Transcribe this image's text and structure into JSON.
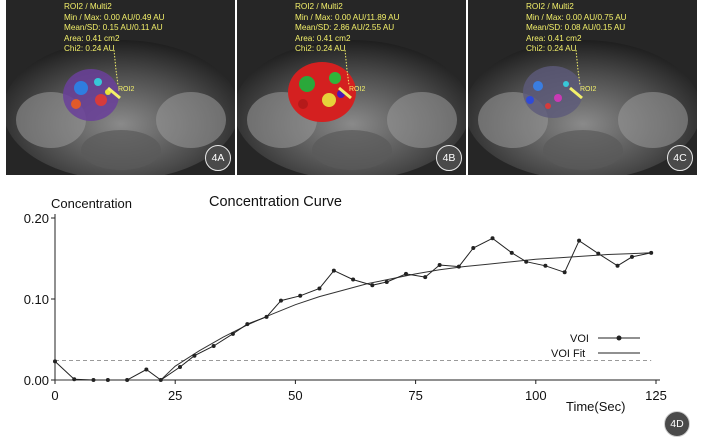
{
  "panels": [
    {
      "roi": "ROI2 / Multi2",
      "minmax": "Min / Max: 0.00 AU/0.49 AU",
      "meansd": "Mean/SD: 0.15 AU/0.11 AU",
      "area": "Area: 0.41 cm2",
      "chi2": "Chi2: 0.24 AU",
      "roi_tag": "ROI2",
      "label": "4A"
    },
    {
      "roi": "ROI2 / Multi2",
      "minmax": "Min / Max: 0.00 AU/11.89 AU",
      "meansd": "Mean/SD: 2.86 AU/2.55 AU",
      "area": "Area: 0.41 cm2",
      "chi2": "Chi2: 0.24 AU",
      "roi_tag": "ROI2",
      "label": "4B"
    },
    {
      "roi": "ROI2 / Multi2",
      "minmax": "Min / Max: 0.00 AU/0.75 AU",
      "meansd": "Mean/SD: 0.08 AU/0.15 AU",
      "area": "Area: 0.41 cm2",
      "chi2": "Chi2: 0.24 AU",
      "roi_tag": "ROI2",
      "label": "4C"
    }
  ],
  "chart_data": {
    "type": "line",
    "title": "Concentration Curve",
    "ylabel": "Concentration",
    "xlabel": "Time(Sec)",
    "label": "4D",
    "xlim": [
      0,
      125
    ],
    "ylim": [
      0,
      0.2
    ],
    "xticks": [
      0,
      25,
      50,
      75,
      100,
      125
    ],
    "yticks": [
      0,
      0.1,
      0.2
    ],
    "ytick_labels": [
      "0.00",
      "0.10",
      "0.20"
    ],
    "baseline": 0.024,
    "legend_position": "right",
    "series": [
      {
        "name": "VOI",
        "style": "line-with-markers",
        "x": [
          0,
          4,
          8,
          11,
          15,
          19,
          22,
          26,
          29,
          33,
          37,
          40,
          44,
          47,
          51,
          55,
          58,
          62,
          66,
          69,
          73,
          77,
          80,
          84,
          87,
          91,
          95,
          98,
          102,
          106,
          109,
          113,
          117,
          120,
          124
        ],
        "y": [
          0.023,
          0.001,
          0.0,
          0.0,
          0.0,
          0.013,
          0.0,
          0.016,
          0.03,
          0.042,
          0.057,
          0.069,
          0.078,
          0.098,
          0.104,
          0.113,
          0.135,
          0.124,
          0.117,
          0.121,
          0.131,
          0.127,
          0.142,
          0.14,
          0.163,
          0.175,
          0.157,
          0.146,
          0.141,
          0.133,
          0.172,
          0.156,
          0.141,
          0.152,
          0.157
        ]
      },
      {
        "name": "VOI Fit",
        "style": "line",
        "x": [
          0,
          5,
          10,
          15,
          20,
          22,
          25,
          30,
          35,
          40,
          45,
          50,
          55,
          60,
          65,
          70,
          75,
          80,
          85,
          90,
          95,
          100,
          105,
          110,
          115,
          120,
          124
        ],
        "y": [
          0.0,
          0.0,
          0.0,
          0.0,
          0.0,
          0.0,
          0.017,
          0.036,
          0.053,
          0.068,
          0.081,
          0.093,
          0.103,
          0.111,
          0.119,
          0.125,
          0.131,
          0.136,
          0.14,
          0.143,
          0.146,
          0.149,
          0.151,
          0.153,
          0.155,
          0.156,
          0.157
        ]
      }
    ]
  }
}
